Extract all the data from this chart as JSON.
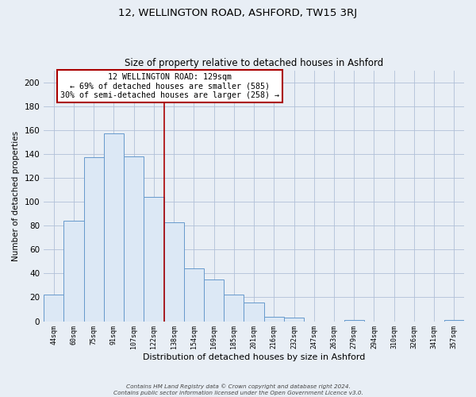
{
  "title": "12, WELLINGTON ROAD, ASHFORD, TW15 3RJ",
  "subtitle": "Size of property relative to detached houses in Ashford",
  "xlabel": "Distribution of detached houses by size in Ashford",
  "ylabel": "Number of detached properties",
  "bar_labels": [
    "44sqm",
    "60sqm",
    "75sqm",
    "91sqm",
    "107sqm",
    "122sqm",
    "138sqm",
    "154sqm",
    "169sqm",
    "185sqm",
    "201sqm",
    "216sqm",
    "232sqm",
    "247sqm",
    "263sqm",
    "279sqm",
    "294sqm",
    "310sqm",
    "326sqm",
    "341sqm",
    "357sqm"
  ],
  "bar_values": [
    22,
    84,
    137,
    157,
    138,
    104,
    83,
    44,
    35,
    22,
    16,
    4,
    3,
    0,
    0,
    1,
    0,
    0,
    0,
    0,
    1
  ],
  "bar_color": "#c9d9ec",
  "bar_edge_color": "#6699cc",
  "ylim": [
    0,
    210
  ],
  "yticks": [
    0,
    20,
    40,
    60,
    80,
    100,
    120,
    140,
    160,
    180,
    200
  ],
  "vline_x_index": 5.5,
  "vline_color": "#aa0000",
  "annotation_title": "12 WELLINGTON ROAD: 129sqm",
  "annotation_line1": "← 69% of detached houses are smaller (585)",
  "annotation_line2": "30% of semi-detached houses are larger (258) →",
  "footer1": "Contains HM Land Registry data © Crown copyright and database right 2024.",
  "footer2": "Contains public sector information licensed under the Open Government Licence v3.0.",
  "bg_color": "#e8eef5",
  "plot_bg_color": "#e8eef5",
  "grid_color": "#b0c0d8",
  "bar_inner_color": "#dce8f5"
}
